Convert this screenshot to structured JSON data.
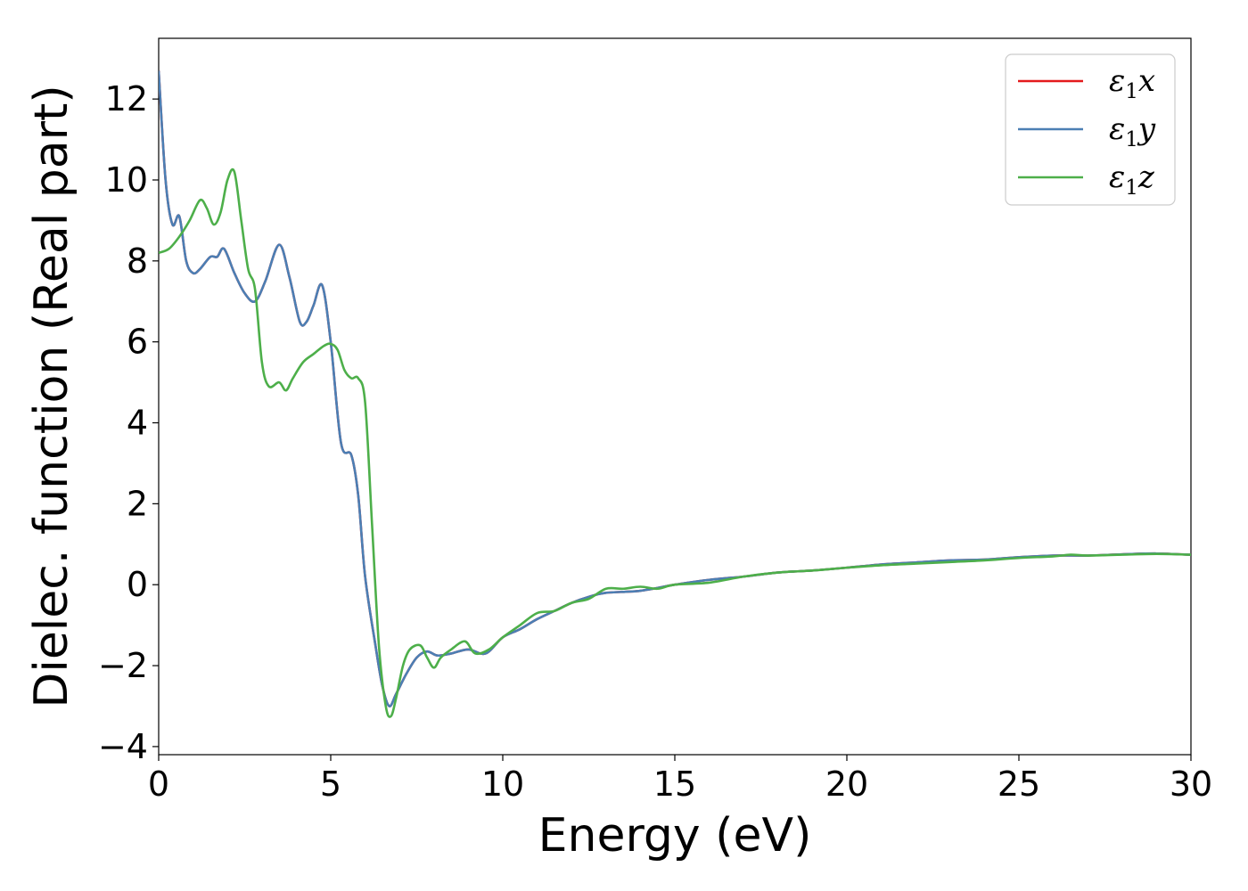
{
  "chart_data": {
    "type": "line",
    "xlabel": "Energy (eV)",
    "ylabel": "Dielec. function (Real part)",
    "xlim": [
      0,
      30
    ],
    "ylim": [
      -4.2,
      13.5
    ],
    "xticks": [
      0,
      5,
      10,
      15,
      20,
      25,
      30
    ],
    "xtick_labels": [
      "0",
      "5",
      "10",
      "15",
      "20",
      "25",
      "30"
    ],
    "yticks": [
      -4,
      -2,
      0,
      2,
      4,
      6,
      8,
      10,
      12
    ],
    "ytick_labels": [
      "−4",
      "−2",
      "0",
      "2",
      "4",
      "6",
      "8",
      "10",
      "12"
    ],
    "grid": false,
    "legend_position": "top-right",
    "series": [
      {
        "name": "ε₁x",
        "legend_main": "ε",
        "legend_sub": "1",
        "legend_var": "x",
        "color": "#e41a1c",
        "x": [
          0,
          0.2,
          0.4,
          0.6,
          0.8,
          1.0,
          1.2,
          1.5,
          1.7,
          1.9,
          2.2,
          2.5,
          2.8,
          3.1,
          3.5,
          3.8,
          4.1,
          4.3,
          4.5,
          4.75,
          5.0,
          5.3,
          5.6,
          5.8,
          6.0,
          6.3,
          6.5,
          6.7,
          6.9,
          7.2,
          7.5,
          7.8,
          8.1,
          8.5,
          9.0,
          9.5,
          10.0,
          10.5,
          11.0,
          11.5,
          12.0,
          12.5,
          13.0,
          14.0,
          15.0,
          16.0,
          17.0,
          18.0,
          19.0,
          20.0,
          21.0,
          22.0,
          23.0,
          24.0,
          25.0,
          26.0,
          27.0,
          28.0,
          29.0,
          30.0
        ],
        "values": [
          12.7,
          10.0,
          8.9,
          9.1,
          8.0,
          7.7,
          7.8,
          8.1,
          8.1,
          8.3,
          7.7,
          7.2,
          7.0,
          7.5,
          8.4,
          7.6,
          6.5,
          6.5,
          6.9,
          7.4,
          6.0,
          3.5,
          3.2,
          2.2,
          0.2,
          -1.5,
          -2.5,
          -3.0,
          -2.7,
          -2.2,
          -1.8,
          -1.65,
          -1.75,
          -1.7,
          -1.6,
          -1.7,
          -1.3,
          -1.1,
          -0.85,
          -0.65,
          -0.45,
          -0.3,
          -0.2,
          -0.15,
          0.0,
          0.12,
          0.2,
          0.3,
          0.35,
          0.42,
          0.5,
          0.55,
          0.6,
          0.62,
          0.68,
          0.72,
          0.72,
          0.75,
          0.77,
          0.74
        ]
      },
      {
        "name": "ε₁y",
        "legend_main": "ε",
        "legend_sub": "1",
        "legend_var": "y",
        "color": "#4b7fb4",
        "x": [
          0,
          0.2,
          0.4,
          0.6,
          0.8,
          1.0,
          1.2,
          1.5,
          1.7,
          1.9,
          2.2,
          2.5,
          2.8,
          3.1,
          3.5,
          3.8,
          4.1,
          4.3,
          4.5,
          4.75,
          5.0,
          5.3,
          5.6,
          5.8,
          6.0,
          6.3,
          6.5,
          6.7,
          6.9,
          7.2,
          7.5,
          7.8,
          8.1,
          8.5,
          9.0,
          9.5,
          10.0,
          10.5,
          11.0,
          11.5,
          12.0,
          12.5,
          13.0,
          14.0,
          15.0,
          16.0,
          17.0,
          18.0,
          19.0,
          20.0,
          21.0,
          22.0,
          23.0,
          24.0,
          25.0,
          26.0,
          27.0,
          28.0,
          29.0,
          30.0
        ],
        "values": [
          12.7,
          10.0,
          8.9,
          9.1,
          8.0,
          7.7,
          7.8,
          8.1,
          8.1,
          8.3,
          7.7,
          7.2,
          7.0,
          7.5,
          8.4,
          7.6,
          6.5,
          6.5,
          6.9,
          7.4,
          6.0,
          3.5,
          3.2,
          2.2,
          0.2,
          -1.5,
          -2.5,
          -3.0,
          -2.7,
          -2.2,
          -1.8,
          -1.65,
          -1.75,
          -1.7,
          -1.6,
          -1.7,
          -1.3,
          -1.1,
          -0.85,
          -0.65,
          -0.45,
          -0.3,
          -0.2,
          -0.15,
          0.0,
          0.12,
          0.2,
          0.3,
          0.35,
          0.42,
          0.5,
          0.55,
          0.6,
          0.62,
          0.68,
          0.72,
          0.72,
          0.75,
          0.77,
          0.74
        ]
      },
      {
        "name": "ε₁z",
        "legend_main": "ε",
        "legend_sub": "1",
        "legend_var": "z",
        "color": "#4daf4a",
        "x": [
          0,
          0.3,
          0.6,
          0.9,
          1.2,
          1.4,
          1.6,
          1.8,
          2.0,
          2.2,
          2.4,
          2.6,
          2.8,
          3.0,
          3.2,
          3.5,
          3.7,
          3.9,
          4.2,
          4.5,
          4.8,
          5.0,
          5.2,
          5.4,
          5.6,
          5.8,
          6.0,
          6.2,
          6.4,
          6.6,
          6.75,
          6.9,
          7.1,
          7.3,
          7.6,
          7.8,
          8.0,
          8.2,
          8.5,
          8.9,
          9.2,
          9.6,
          10.0,
          10.5,
          11.0,
          11.5,
          12.0,
          12.5,
          13.0,
          13.5,
          14.0,
          14.5,
          15.0,
          16.0,
          17.0,
          18.0,
          19.0,
          20.0,
          21.0,
          22.0,
          23.0,
          24.0,
          25.0,
          26.0,
          26.5,
          27.0,
          28.0,
          29.0,
          30.0
        ],
        "values": [
          8.2,
          8.3,
          8.6,
          9.0,
          9.5,
          9.3,
          8.9,
          9.2,
          10.0,
          10.2,
          9.0,
          7.8,
          7.3,
          5.5,
          4.9,
          5.0,
          4.8,
          5.1,
          5.5,
          5.7,
          5.9,
          5.95,
          5.8,
          5.3,
          5.1,
          5.1,
          4.5,
          1.5,
          -1.5,
          -3.0,
          -3.25,
          -2.8,
          -2.0,
          -1.6,
          -1.5,
          -1.8,
          -2.05,
          -1.8,
          -1.6,
          -1.4,
          -1.7,
          -1.6,
          -1.3,
          -1.0,
          -0.7,
          -0.65,
          -0.45,
          -0.35,
          -0.1,
          -0.1,
          -0.05,
          -0.1,
          0.0,
          0.05,
          0.2,
          0.3,
          0.35,
          0.42,
          0.48,
          0.52,
          0.56,
          0.6,
          0.66,
          0.7,
          0.74,
          0.72,
          0.74,
          0.76,
          0.74
        ]
      }
    ]
  }
}
